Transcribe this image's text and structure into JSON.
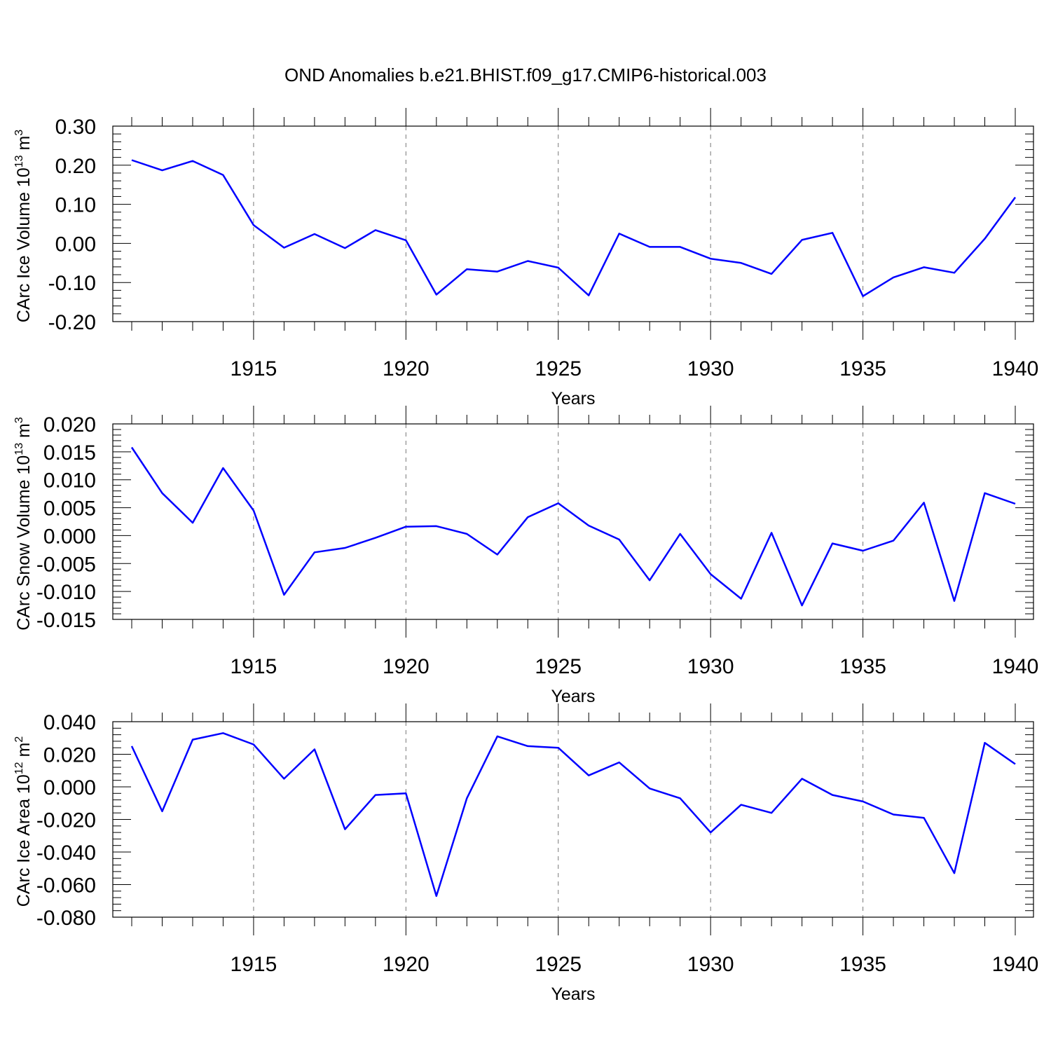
{
  "figure_title": "OND Anomalies b.e21.BHIST.f09_g17.CMIP6-historical.003",
  "colors": {
    "series": "#0000ff",
    "axis": "#000000",
    "grid": "#777777"
  },
  "chart_data": [
    {
      "type": "line",
      "name": "ice-volume",
      "xlabel": "Years",
      "ylabel_main": "CArc Ice Volume 10",
      "ylabel_exp": "13",
      "ylabel_unit": " m",
      "ylabel_unit_exp": "3",
      "xlim": [
        1911,
        1940
      ],
      "ylim": [
        -0.2,
        0.3
      ],
      "yticks": [
        -0.2,
        -0.1,
        0.0,
        0.1,
        0.2,
        0.3
      ],
      "ytick_labels": [
        "-0.20",
        "-0.10",
        "0.00",
        "0.10",
        "0.20",
        "0.30"
      ],
      "xticks": [
        1915,
        1920,
        1925,
        1930,
        1935,
        1940
      ],
      "xtick_labels": [
        "1915",
        "1920",
        "1925",
        "1930",
        "1935",
        "1940"
      ],
      "x": [
        1911,
        1912,
        1913,
        1914,
        1915,
        1916,
        1917,
        1918,
        1919,
        1920,
        1921,
        1922,
        1923,
        1924,
        1925,
        1926,
        1927,
        1928,
        1929,
        1930,
        1931,
        1932,
        1933,
        1934,
        1935,
        1936,
        1937,
        1938,
        1939,
        1940
      ],
      "values": [
        0.213,
        0.187,
        0.211,
        0.175,
        0.047,
        -0.011,
        0.024,
        -0.012,
        0.034,
        0.008,
        -0.131,
        -0.066,
        -0.072,
        -0.045,
        -0.062,
        -0.133,
        0.025,
        -0.009,
        -0.009,
        -0.039,
        -0.05,
        -0.078,
        0.009,
        0.027,
        -0.135,
        -0.087,
        -0.061,
        -0.075,
        0.012,
        0.118
      ]
    },
    {
      "type": "line",
      "name": "snow-volume",
      "xlabel": "Years",
      "ylabel_main": "CArc Snow Volume 10",
      "ylabel_exp": "13",
      "ylabel_unit": " m",
      "ylabel_unit_exp": "3",
      "xlim": [
        1911,
        1940
      ],
      "ylim": [
        -0.015,
        0.02
      ],
      "yticks": [
        -0.015,
        -0.01,
        -0.005,
        0.0,
        0.005,
        0.01,
        0.015,
        0.02
      ],
      "ytick_labels": [
        "-0.015",
        "-0.010",
        "-0.005",
        "0.000",
        "0.005",
        "0.010",
        "0.015",
        "0.020"
      ],
      "xticks": [
        1915,
        1920,
        1925,
        1930,
        1935,
        1940
      ],
      "xtick_labels": [
        "1915",
        "1920",
        "1925",
        "1930",
        "1935",
        "1940"
      ],
      "x": [
        1911,
        1912,
        1913,
        1914,
        1915,
        1916,
        1917,
        1918,
        1919,
        1920,
        1921,
        1922,
        1923,
        1924,
        1925,
        1926,
        1927,
        1928,
        1929,
        1930,
        1931,
        1932,
        1933,
        1934,
        1935,
        1936,
        1937,
        1938,
        1939,
        1940
      ],
      "values": [
        0.0158,
        0.0076,
        0.0023,
        0.0121,
        0.0045,
        -0.0106,
        -0.003,
        -0.0022,
        -0.0004,
        0.0016,
        0.0017,
        0.0003,
        -0.0034,
        0.0033,
        0.0058,
        0.0018,
        -0.0007,
        -0.008,
        0.0003,
        -0.0069,
        -0.0113,
        0.0005,
        -0.0125,
        -0.0014,
        -0.0027,
        -0.0009,
        0.0059,
        -0.0117,
        0.0076,
        0.0057
      ]
    },
    {
      "type": "line",
      "name": "ice-area",
      "xlabel": "Years",
      "ylabel_main": "CArc Ice Area 10",
      "ylabel_exp": "12",
      "ylabel_unit": " m",
      "ylabel_unit_exp": "2",
      "xlim": [
        1911,
        1940
      ],
      "ylim": [
        -0.08,
        0.04
      ],
      "yticks": [
        -0.08,
        -0.06,
        -0.04,
        -0.02,
        0.0,
        0.02,
        0.04
      ],
      "ytick_labels": [
        "-0.080",
        "-0.060",
        "-0.040",
        "-0.020",
        "0.000",
        "0.020",
        "0.040"
      ],
      "xticks": [
        1915,
        1920,
        1925,
        1930,
        1935,
        1940
      ],
      "xtick_labels": [
        "1915",
        "1920",
        "1925",
        "1930",
        "1935",
        "1940"
      ],
      "x": [
        1911,
        1912,
        1913,
        1914,
        1915,
        1916,
        1917,
        1918,
        1919,
        1920,
        1921,
        1922,
        1923,
        1924,
        1925,
        1926,
        1927,
        1928,
        1929,
        1930,
        1931,
        1932,
        1933,
        1934,
        1935,
        1936,
        1937,
        1938,
        1939,
        1940
      ],
      "values": [
        0.025,
        -0.015,
        0.029,
        0.033,
        0.026,
        0.005,
        0.023,
        -0.026,
        -0.005,
        -0.004,
        -0.067,
        -0.007,
        0.031,
        0.025,
        0.024,
        0.007,
        0.015,
        -0.001,
        -0.007,
        -0.028,
        -0.011,
        -0.016,
        0.005,
        -0.005,
        -0.009,
        -0.017,
        -0.019,
        -0.053,
        0.027,
        0.014
      ]
    }
  ]
}
